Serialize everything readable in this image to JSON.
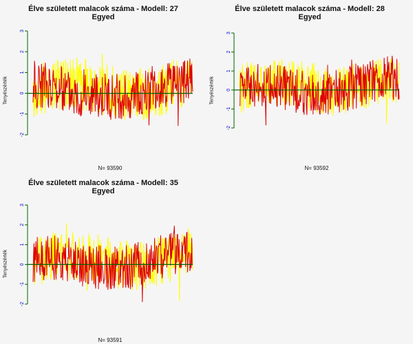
{
  "chart_data": [
    {
      "type": "line",
      "title_line1": "Élve született malacok száma - Modell: 27",
      "title_line2": "Egyed",
      "ylabel": "Tenyészérték",
      "n_label": "N= 93590",
      "yticks": [
        "-2",
        "-1",
        "0",
        "1",
        "2",
        "3"
      ],
      "ylim": [
        -2,
        3
      ],
      "series": [
        {
          "color": "#ffff00",
          "amplitude": 1.25,
          "offset": 0.05
        },
        {
          "color": "#dd0000",
          "amplitude": 1.15,
          "offset": -0.05
        }
      ],
      "zero_line_color": "#006400",
      "seed": 27
    },
    {
      "type": "line",
      "title_line1": "Élve született malacok száma - Modell: 28",
      "title_line2": "Egyed",
      "ylabel": "Tenyészérték",
      "n_label": "N= 93592",
      "yticks": [
        "-2",
        "-1",
        "0",
        "1",
        "2",
        "3"
      ],
      "ylim": [
        -2,
        3
      ],
      "series": [
        {
          "color": "#ffff00",
          "amplitude": 1.3,
          "offset": 0.05
        },
        {
          "color": "#dd0000",
          "amplitude": 1.2,
          "offset": -0.05
        }
      ],
      "zero_line_color": "#006400",
      "seed": 28
    },
    {
      "type": "line",
      "title_line1": "Élve született malacok száma - Modell: 35",
      "title_line2": "Egyed",
      "ylabel": "Tenyészérték",
      "n_label": "N= 93591",
      "yticks": [
        "-2",
        "-1",
        "0",
        "1",
        "2",
        "3"
      ],
      "ylim": [
        -2,
        3
      ],
      "series": [
        {
          "color": "#ffff00",
          "amplitude": 1.25,
          "offset": 0.05
        },
        {
          "color": "#dd0000",
          "amplitude": 1.15,
          "offset": -0.05
        }
      ],
      "zero_line_color": "#006400",
      "seed": 35
    }
  ]
}
